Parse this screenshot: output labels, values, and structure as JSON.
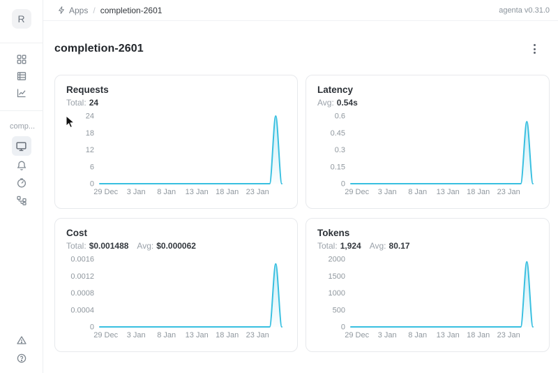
{
  "topbar": {
    "breadcrumb": {
      "app_link": "Apps",
      "separator": "/",
      "current": "completion-2601"
    },
    "version": "agenta v0.31.0"
  },
  "sidebar": {
    "logo_letter": "R",
    "workspace_label": "comp...",
    "nav_icons": [
      "apps-grid-icon",
      "table-icon",
      "analytics-icon"
    ],
    "app_icons": [
      "monitor-icon (active)",
      "bell-icon",
      "gauge-icon",
      "tree-icon"
    ],
    "bottom_icons": [
      "alert-triangle-icon",
      "help-circle-icon"
    ]
  },
  "page": {
    "title": "completion-2601"
  },
  "colors": {
    "accent": "#38bfe0",
    "text_dark": "#32363b",
    "text_gray": "#9aa1a9",
    "card_border": "#e7e9ec"
  },
  "chart_data": [
    {
      "type": "area",
      "title": "Requests",
      "stats": [
        {
          "label": "Total:",
          "value": "24"
        }
      ],
      "x_ticks": [
        "29 Dec",
        "3 Jan",
        "8 Jan",
        "13 Jan",
        "18 Jan",
        "23 Jan"
      ],
      "x_tick_days": [
        1,
        6,
        11,
        16,
        21,
        26
      ],
      "days": 30,
      "y_ticks": [
        "0",
        "6",
        "12",
        "18",
        "24"
      ],
      "y_max": 24,
      "ylim": [
        0,
        24
      ],
      "grid": false,
      "legend": "none",
      "values": [
        0,
        0,
        0,
        0,
        0,
        0,
        0,
        0,
        0,
        0,
        0,
        0,
        0,
        0,
        0,
        0,
        0,
        0,
        0,
        0,
        0,
        0,
        0,
        0,
        0,
        0,
        0,
        0,
        0,
        24,
        0
      ]
    },
    {
      "type": "area",
      "title": "Latency",
      "stats": [
        {
          "label": "Avg:",
          "value": "0.54s"
        }
      ],
      "x_ticks": [
        "29 Dec",
        "3 Jan",
        "8 Jan",
        "13 Jan",
        "18 Jan",
        "23 Jan"
      ],
      "x_tick_days": [
        1,
        6,
        11,
        16,
        21,
        26
      ],
      "days": 30,
      "y_ticks": [
        "0",
        "0.15",
        "0.3",
        "0.45",
        "0.6"
      ],
      "y_max": 0.6,
      "ylim": [
        0,
        0.6
      ],
      "grid": false,
      "legend": "none",
      "values": [
        0,
        0,
        0,
        0,
        0,
        0,
        0,
        0,
        0,
        0,
        0,
        0,
        0,
        0,
        0,
        0,
        0,
        0,
        0,
        0,
        0,
        0,
        0,
        0,
        0,
        0,
        0,
        0,
        0,
        0.55,
        0
      ]
    },
    {
      "type": "area",
      "title": "Cost",
      "stats": [
        {
          "label": "Total:",
          "value": "$0.001488"
        },
        {
          "label": "Avg:",
          "value": "$0.000062"
        }
      ],
      "x_ticks": [
        "29 Dec",
        "3 Jan",
        "8 Jan",
        "13 Jan",
        "18 Jan",
        "23 Jan"
      ],
      "x_tick_days": [
        1,
        6,
        11,
        16,
        21,
        26
      ],
      "days": 30,
      "y_ticks": [
        "0",
        "0.0004",
        "0.0008",
        "0.0012",
        "0.0016"
      ],
      "y_max": 0.0016,
      "ylim": [
        0,
        0.0016
      ],
      "grid": false,
      "legend": "none",
      "values": [
        0,
        0,
        0,
        0,
        0,
        0,
        0,
        0,
        0,
        0,
        0,
        0,
        0,
        0,
        0,
        0,
        0,
        0,
        0,
        0,
        0,
        0,
        0,
        0,
        0,
        0,
        0,
        0,
        0,
        0.001488,
        0
      ]
    },
    {
      "type": "area",
      "title": "Tokens",
      "stats": [
        {
          "label": "Total:",
          "value": "1,924"
        },
        {
          "label": "Avg:",
          "value": "80.17"
        }
      ],
      "x_ticks": [
        "29 Dec",
        "3 Jan",
        "8 Jan",
        "13 Jan",
        "18 Jan",
        "23 Jan"
      ],
      "x_tick_days": [
        1,
        6,
        11,
        16,
        21,
        26
      ],
      "days": 30,
      "y_ticks": [
        "0",
        "500",
        "1000",
        "1500",
        "2000"
      ],
      "y_max": 2000,
      "ylim": [
        0,
        2000
      ],
      "grid": false,
      "legend": "none",
      "values": [
        0,
        0,
        0,
        0,
        0,
        0,
        0,
        0,
        0,
        0,
        0,
        0,
        0,
        0,
        0,
        0,
        0,
        0,
        0,
        0,
        0,
        0,
        0,
        0,
        0,
        0,
        0,
        0,
        0,
        1924,
        0
      ]
    }
  ]
}
